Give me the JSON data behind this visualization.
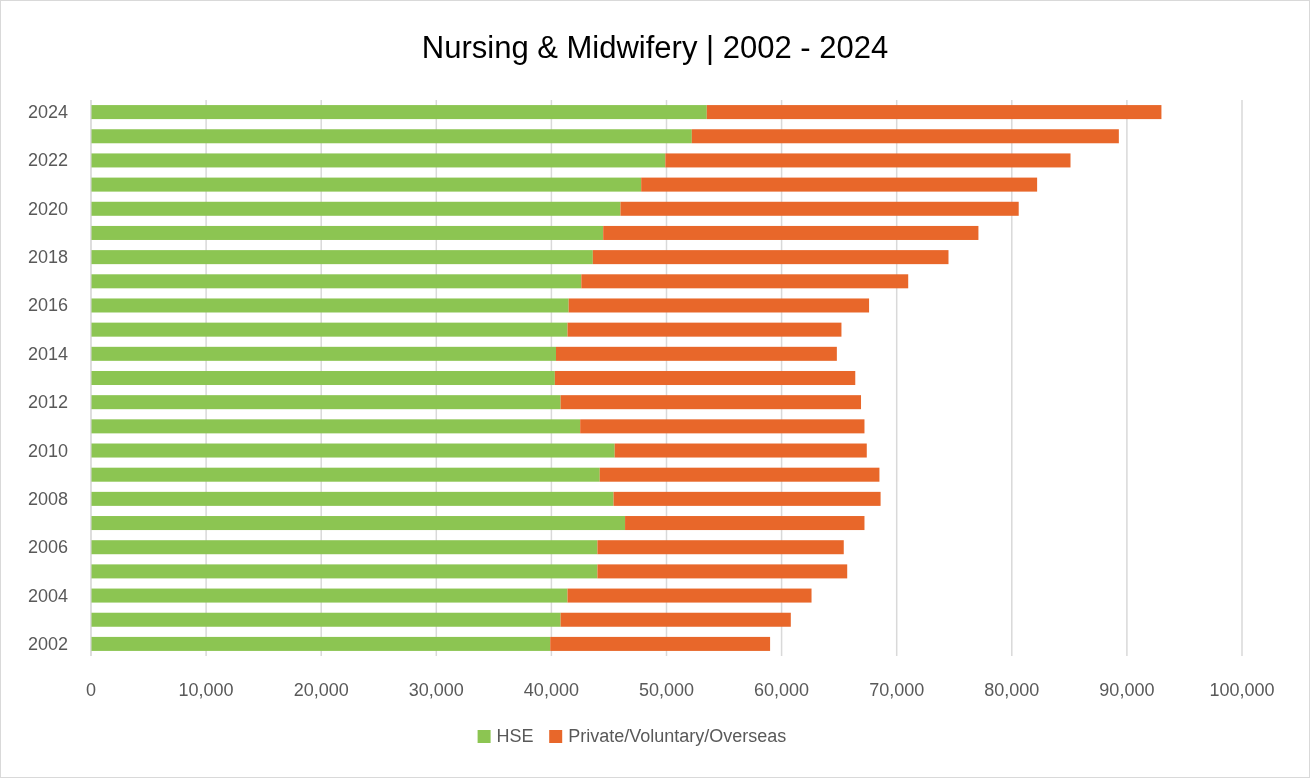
{
  "chart_data": {
    "type": "bar",
    "orientation": "horizontal",
    "stacked": true,
    "title": "Nursing & Midwifery | 2002 - 2024",
    "categories": [
      "2024",
      null,
      "2022",
      null,
      "2020",
      null,
      "2018",
      null,
      "2016",
      null,
      "2014",
      null,
      "2012",
      null,
      "2010",
      null,
      "2008",
      null,
      "2006",
      null,
      "2004",
      null,
      "2002"
    ],
    "series": [
      {
        "name": "HSE",
        "color": "#8cc552",
        "values": [
          53500,
          52200,
          49900,
          47800,
          46000,
          44500,
          43600,
          42600,
          41500,
          41400,
          40400,
          40300,
          40800,
          42500,
          45500,
          44200,
          45400,
          46400,
          44000,
          44000,
          41400,
          40800,
          39900
        ]
      },
      {
        "name": "Private/Voluntary/Overseas",
        "color": "#e8672a",
        "values": [
          39500,
          37100,
          35200,
          34400,
          34600,
          32600,
          30900,
          28400,
          26100,
          23800,
          24400,
          26100,
          26100,
          24700,
          21900,
          24300,
          23200,
          20800,
          21400,
          21700,
          21200,
          20000,
          19100
        ]
      }
    ],
    "xlim": [
      0,
      100000
    ],
    "xticks": [
      0,
      {
        "value": 10000,
        "label": "10,000"
      },
      {
        "value": 20000,
        "label": "20,000"
      },
      {
        "value": 30000,
        "label": "30,000"
      },
      {
        "value": 40000,
        "label": "40,000"
      },
      {
        "value": 50000,
        "label": "50,000"
      },
      {
        "value": 60000,
        "label": "60,000"
      },
      {
        "value": 70000,
        "label": "70,000"
      },
      {
        "value": 80000,
        "label": "80,000"
      },
      {
        "value": 90000,
        "label": "90,000"
      },
      {
        "value": 100000,
        "label": "100,000"
      }
    ],
    "grid": "x",
    "legend": "bottom"
  }
}
